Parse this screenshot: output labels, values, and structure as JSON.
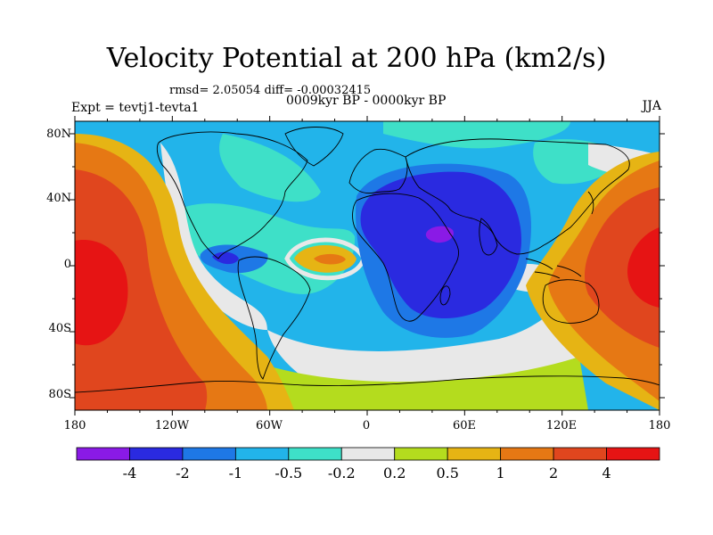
{
  "title": "Velocity Potential at 200 hPa (km2/s)",
  "stats_line": "rmsd= 2.05054 diff= -0.00032415",
  "experiment": "Expt = tevtj1-tevta1",
  "period": "0009kyr BP - 0000kyr BP",
  "season": "JJA",
  "lat_labels": [
    "80N",
    "40N",
    "0",
    "40S",
    "80S"
  ],
  "lon_labels": [
    "180",
    "120W",
    "60W",
    "0",
    "60E",
    "120E",
    "180"
  ],
  "colorbar": {
    "labels": [
      "-4",
      "-2",
      "-1",
      "-0.5",
      "-0.2",
      "0.2",
      "0.5",
      "1",
      "2",
      "4"
    ],
    "colors": [
      "#8a1ae6",
      "#2a2ae0",
      "#1e78e6",
      "#22b4ea",
      "#3ee0c8",
      "#e8e8e8",
      "#b4dc1e",
      "#e6b414",
      "#e67814",
      "#e0461e",
      "#e61414"
    ]
  },
  "colors": {
    "ocean_default": "#3ee0c8",
    "coastline": "#000000"
  }
}
